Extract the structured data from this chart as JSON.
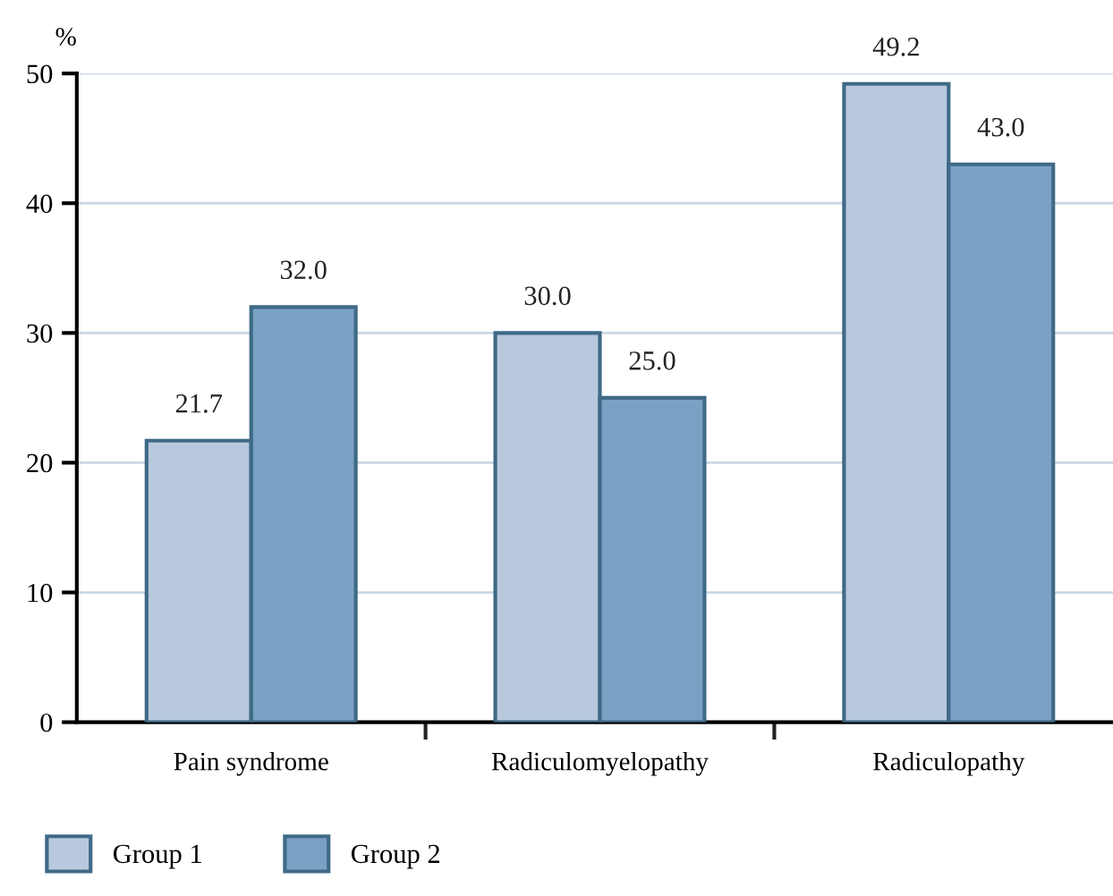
{
  "chart_data": {
    "type": "bar",
    "ylabel": "%",
    "categories": [
      "Pain syndrome",
      "Radiculomyelopathy",
      "Radiculopathy"
    ],
    "series": [
      {
        "name": "Group 1",
        "color": "#b8c9de",
        "values": [
          21.7,
          30.0,
          49.2
        ],
        "value_labels": [
          "21.7",
          "30.0",
          "49.2"
        ]
      },
      {
        "name": "Group 2",
        "color": "#7aa1c3",
        "values": [
          32.0,
          25.0,
          43.0
        ],
        "value_labels": [
          "32.0",
          "25.0",
          "43.0"
        ]
      }
    ],
    "ylim": [
      0,
      50
    ],
    "yticks": [
      0,
      10,
      20,
      30,
      40,
      50
    ],
    "grid": "y",
    "legend": "bottom left"
  }
}
